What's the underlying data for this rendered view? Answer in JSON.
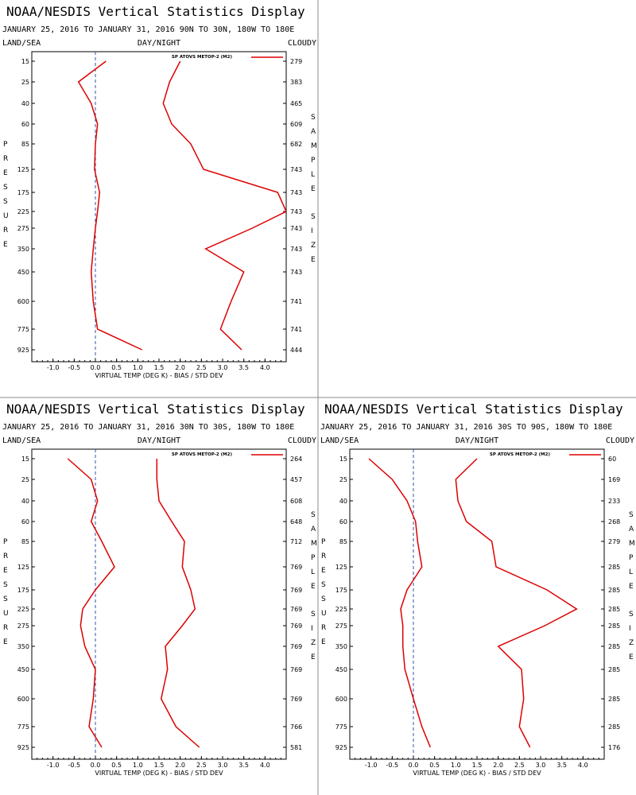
{
  "colors": {
    "series": "#dd0000",
    "frame": "#000000",
    "zero_line": "#3355aa",
    "divider": "#888888"
  },
  "labels": {
    "title": "NOAA/NESDIS Vertical Statistics Display",
    "left_header": "LAND/SEA",
    "center_header": "DAY/NIGHT",
    "right_header": "CLOUDY",
    "xlabel": "VIRTUAL TEMP (DEG K) - BIAS / STD DEV",
    "ylabel_letters": [
      "P",
      "R",
      "E",
      "S",
      "S",
      "U",
      "R",
      "E"
    ],
    "right_axis_letters": [
      "S",
      "A",
      "M",
      "P",
      "L",
      "E",
      "S",
      "I",
      "Z",
      "E"
    ],
    "legend": "SP ATOVS METOP-2 (M2)"
  },
  "chart_data": [
    {
      "type": "line",
      "subtitle": "JANUARY 25, 2016 TO JANUARY 31, 2016   90N TO 30N, 180W TO 180E",
      "pressure_levels": [
        "15",
        "25",
        "40",
        "60",
        "85",
        "125",
        "175",
        "225",
        "275",
        "350",
        "450",
        "600",
        "775",
        "925"
      ],
      "sample_size": [
        "279",
        "383",
        "465",
        "609",
        "682",
        "743",
        "743",
        "743",
        "743",
        "743",
        "743",
        "741",
        "741",
        "444"
      ],
      "x_ticks": [
        "-1.0",
        "-0.5",
        "0.0",
        "0.5",
        "1.0",
        "1.5",
        "2.0",
        "2.5",
        "3.0",
        "3.5",
        "4.0"
      ],
      "xlim": [
        -1.5,
        4.5
      ],
      "series": [
        {
          "name": "SP ATOVS METOP-2 (M2)",
          "stat": "bias",
          "values": [
            0.25,
            -0.4,
            -0.1,
            0.05,
            0.0,
            -0.02,
            0.1,
            0.05,
            0.0,
            -0.05,
            -0.1,
            -0.05,
            0.05,
            1.1
          ]
        },
        {
          "name": "SP ATOVS METOP-2 (M2)",
          "stat": "std_dev",
          "values": [
            2.0,
            1.75,
            1.6,
            1.8,
            2.25,
            2.55,
            4.3,
            4.5,
            3.7,
            2.6,
            3.5,
            3.2,
            2.95,
            3.45
          ]
        }
      ]
    },
    {
      "type": "line",
      "subtitle": "JANUARY 25, 2016 TO JANUARY 31, 2016   30N TO 30S, 180W TO 180E",
      "pressure_levels": [
        "15",
        "25",
        "40",
        "60",
        "85",
        "125",
        "175",
        "225",
        "275",
        "350",
        "450",
        "600",
        "775",
        "925"
      ],
      "sample_size": [
        "264",
        "457",
        "608",
        "648",
        "712",
        "769",
        "769",
        "769",
        "769",
        "769",
        "769",
        "769",
        "766",
        "581"
      ],
      "x_ticks": [
        "-1.0",
        "-0.5",
        "0.0",
        "0.5",
        "1.0",
        "1.5",
        "2.0",
        "2.5",
        "3.0",
        "3.5",
        "4.0"
      ],
      "xlim": [
        -1.5,
        4.5
      ],
      "series": [
        {
          "name": "SP ATOVS METOP-2 (M2)",
          "stat": "bias",
          "values": [
            -0.65,
            -0.1,
            0.05,
            -0.1,
            0.15,
            0.45,
            0.0,
            -0.3,
            -0.35,
            -0.25,
            0.0,
            -0.05,
            -0.15,
            0.15
          ]
        },
        {
          "name": "SP ATOVS METOP-2 (M2)",
          "stat": "std_dev",
          "values": [
            1.45,
            1.45,
            1.5,
            1.8,
            2.1,
            2.05,
            2.25,
            2.35,
            2.05,
            1.65,
            1.7,
            1.55,
            1.9,
            2.45
          ]
        }
      ]
    },
    {
      "type": "line",
      "subtitle": "JANUARY 25, 2016 TO JANUARY 31, 2016   30S TO 90S, 180W TO 180E",
      "pressure_levels": [
        "15",
        "25",
        "40",
        "60",
        "85",
        "125",
        "175",
        "225",
        "275",
        "350",
        "450",
        "600",
        "775",
        "925"
      ],
      "sample_size": [
        "60",
        "169",
        "233",
        "268",
        "279",
        "285",
        "285",
        "285",
        "285",
        "285",
        "285",
        "285",
        "285",
        "176"
      ],
      "x_ticks": [
        "-1.0",
        "-0.5",
        "0.0",
        "0.5",
        "1.0",
        "1.5",
        "2.0",
        "2.5",
        "3.0",
        "3.5",
        "4.0"
      ],
      "xlim": [
        -1.5,
        4.5
      ],
      "series": [
        {
          "name": "SP ATOVS METOP-2 (M2)",
          "stat": "bias",
          "values": [
            -1.05,
            -0.5,
            -0.15,
            0.05,
            0.1,
            0.2,
            -0.15,
            -0.3,
            -0.25,
            -0.25,
            -0.2,
            0.0,
            0.2,
            0.4
          ]
        },
        {
          "name": "SP ATOVS METOP-2 (M2)",
          "stat": "std_dev",
          "values": [
            1.5,
            1.0,
            1.05,
            1.25,
            1.85,
            1.95,
            3.15,
            3.85,
            3.1,
            2.0,
            2.55,
            2.6,
            2.5,
            2.75
          ]
        }
      ]
    }
  ]
}
